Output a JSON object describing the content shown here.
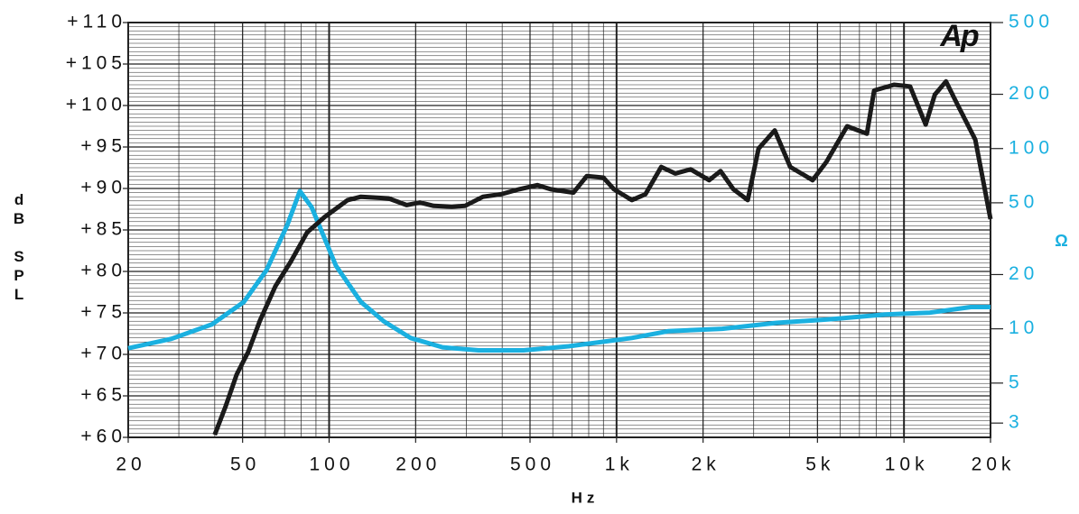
{
  "chart_data": {
    "type": "line",
    "logo": "Ap",
    "y_label": "dB SPL",
    "y2_label": "Ω",
    "x_label": "Hz",
    "xscale": "log",
    "y2scale": "log",
    "grid": true,
    "xlim": [
      20,
      20000
    ],
    "ylim": [
      60,
      110
    ],
    "y2lim": [
      2.5,
      500
    ],
    "xticks": [
      20,
      50,
      100,
      200,
      500,
      {
        "value": 1000,
        "label": "1k"
      },
      {
        "value": 2000,
        "label": "2k"
      },
      {
        "value": 5000,
        "label": "5k"
      },
      {
        "value": 10000,
        "label": "10k"
      },
      {
        "value": 20000,
        "label": "20k"
      }
    ],
    "yticks": [
      {
        "value": 60,
        "label": "+60"
      },
      {
        "value": 65,
        "label": "+65"
      },
      {
        "value": 70,
        "label": "+70"
      },
      {
        "value": 75,
        "label": "+75"
      },
      {
        "value": 80,
        "label": "+80"
      },
      {
        "value": 85,
        "label": "+85"
      },
      {
        "value": 90,
        "label": "+90"
      },
      {
        "value": 95,
        "label": "+95"
      },
      {
        "value": 100,
        "label": "+100"
      },
      {
        "value": 105,
        "label": "+105"
      },
      {
        "value": 110,
        "label": "+110"
      }
    ],
    "y2ticks": [
      3,
      5,
      10,
      20,
      50,
      100,
      200,
      500
    ],
    "series": [
      {
        "color": "#1a1a1a",
        "x": [
          40,
          43.7,
          47.7,
          52.3,
          57.5,
          65,
          73.6,
          83.8,
          96.8,
          116,
          129,
          161,
          186,
          207,
          231,
          267,
          297,
          343,
          397,
          458,
          530,
          590,
          708,
          788,
          900,
          980,
          1130,
          1260,
          1430,
          1600,
          1810,
          2100,
          2300,
          2550,
          2860,
          3120,
          3550,
          4020,
          4810,
          5370,
          6340,
          7430,
          7870,
          9230,
          10500,
          11900,
          12800,
          14000,
          15300,
          17700,
          20000
        ],
        "values": [
          60.3,
          63.8,
          67.6,
          70.3,
          74.1,
          78.2,
          81.2,
          84.7,
          86.6,
          88.6,
          89.0,
          88.8,
          88.0,
          88.3,
          87.9,
          87.8,
          87.9,
          89.0,
          89.3,
          89.9,
          90.4,
          89.9,
          89.5,
          91.5,
          91.3,
          89.9,
          88.6,
          89.3,
          92.6,
          91.8,
          92.3,
          91.0,
          92.1,
          89.9,
          88.6,
          94.8,
          97.0,
          92.6,
          91.0,
          93.2,
          97.5,
          96.6,
          101.8,
          102.5,
          102.3,
          97.7,
          101.3,
          102.9,
          100.2,
          95.9,
          86.3
        ]
      },
      {
        "color": "#1ab0e0",
        "axis": "y2",
        "x": [
          20,
          28.3,
          39.2,
          50.5,
          60.5,
          71.5,
          79.1,
          86.9,
          105.6,
          129,
          155,
          192,
          248,
          331,
          475,
          682,
          1130,
          1510,
          2330,
          3610,
          5560,
          8590,
          12300,
          17100,
          20000
        ],
        "values": [
          7.8,
          8.8,
          10.6,
          14.1,
          21.1,
          37.6,
          58.1,
          47.3,
          22.4,
          14.1,
          11.0,
          8.9,
          7.9,
          7.6,
          7.6,
          8.0,
          8.9,
          9.7,
          10.0,
          10.8,
          11.3,
          12.0,
          12.3,
          13.2,
          13.2
        ]
      }
    ]
  }
}
